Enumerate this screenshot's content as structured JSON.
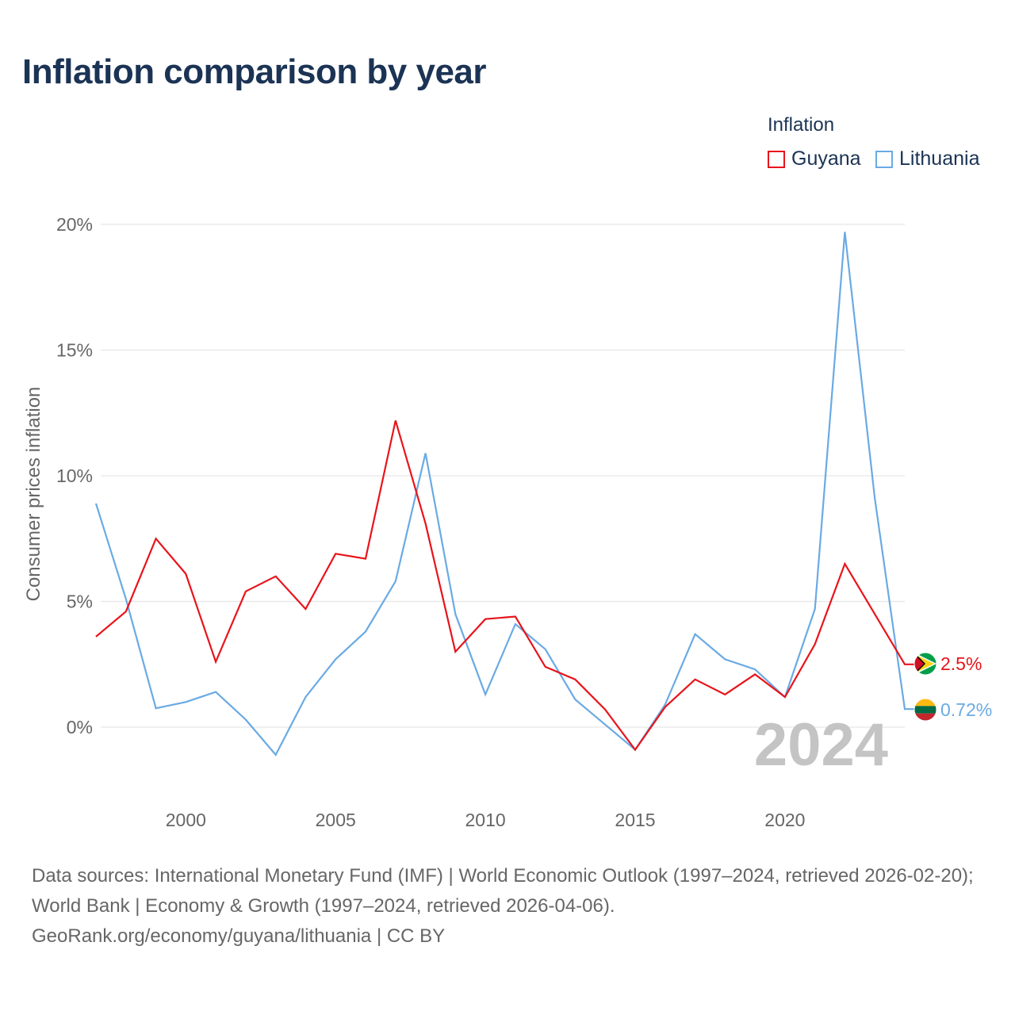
{
  "title": "Inflation comparison by year",
  "legend": {
    "title": "Inflation",
    "items": [
      {
        "label": "Guyana",
        "color": "#e8141b"
      },
      {
        "label": "Lithuania",
        "color": "#6aaae4"
      }
    ]
  },
  "year_watermark": "2024",
  "footer": {
    "line1": "Data sources: International Monetary Fund (IMF) | World Economic Outlook (1997–2024, retrieved 2026-02-20); World Bank | Economy & Growth (1997–2024, retrieved 2026-04-06).",
    "line2": "GeoRank.org/economy/guyana/lithuania | CC BY"
  },
  "chart_data": {
    "type": "line",
    "title": "Inflation comparison by year",
    "xlabel": "",
    "ylabel": "Consumer prices inflation",
    "xlim": [
      1997,
      2024
    ],
    "ylim": [
      -3,
      21
    ],
    "x_ticks": [
      2000,
      2005,
      2010,
      2015,
      2020
    ],
    "x_tick_labels": [
      "2000",
      "2005",
      "2010",
      "2015",
      "2020"
    ],
    "y_ticks": [
      0,
      5,
      10,
      15,
      20
    ],
    "y_tick_labels": [
      "0%",
      "5%",
      "10%",
      "15%",
      "20%"
    ],
    "grid": true,
    "legend_position": "top-right",
    "x": [
      1997,
      1998,
      1999,
      2000,
      2001,
      2002,
      2003,
      2004,
      2005,
      2006,
      2007,
      2008,
      2009,
      2010,
      2011,
      2012,
      2013,
      2014,
      2015,
      2016,
      2017,
      2018,
      2019,
      2020,
      2021,
      2022,
      2023,
      2024
    ],
    "series": [
      {
        "name": "Guyana",
        "color": "#e8141b",
        "end_label": "2.5%",
        "flag": "guyana",
        "values": [
          3.6,
          4.6,
          7.5,
          6.1,
          2.6,
          5.4,
          6.0,
          4.7,
          6.9,
          6.7,
          12.2,
          8.1,
          3.0,
          4.3,
          4.4,
          2.4,
          1.9,
          0.7,
          -0.9,
          0.8,
          1.9,
          1.3,
          2.1,
          1.2,
          3.3,
          6.5,
          4.5,
          2.5
        ]
      },
      {
        "name": "Lithuania",
        "color": "#6aaae4",
        "end_label": "0.72%",
        "flag": "lithuania",
        "values": [
          8.9,
          5.1,
          0.75,
          1.0,
          1.4,
          0.3,
          -1.1,
          1.2,
          2.7,
          3.8,
          5.8,
          10.9,
          4.5,
          1.3,
          4.1,
          3.1,
          1.1,
          0.1,
          -0.9,
          0.9,
          3.7,
          2.7,
          2.3,
          1.2,
          4.7,
          19.7,
          9.1,
          0.72
        ]
      }
    ]
  }
}
